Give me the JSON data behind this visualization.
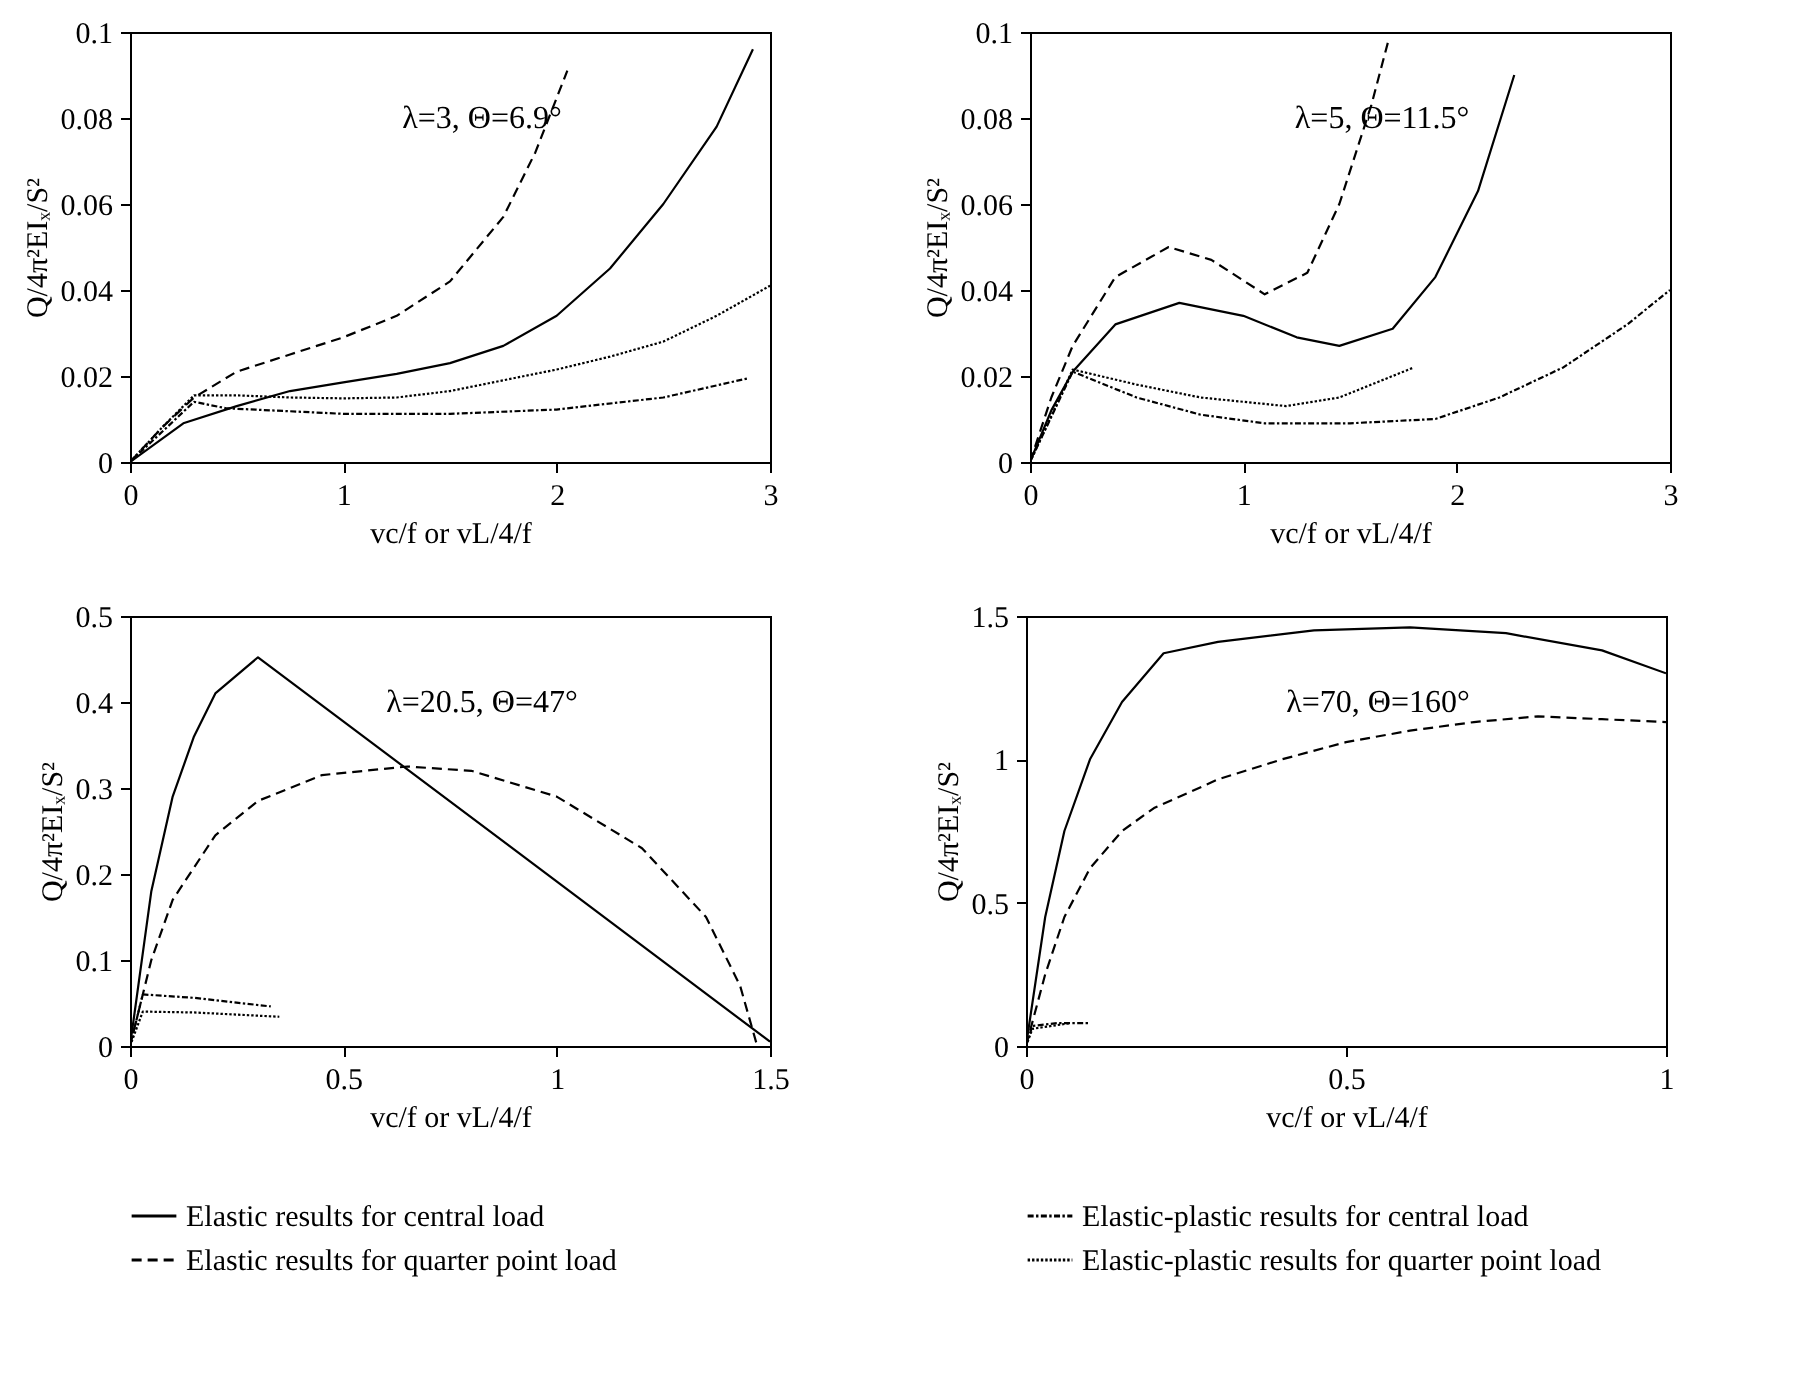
{
  "chart_data": [
    {
      "type": "line",
      "xlabel": "vc/f or vL/4/f",
      "ylabel": "Q/4π²EIₓ/S²",
      "annotations": [
        "λ=3, Θ=6.9°"
      ],
      "xlim": [
        0,
        3
      ],
      "xticks": [
        0,
        1,
        2,
        3
      ],
      "ylim": [
        0,
        0.1
      ],
      "yticks": [
        0,
        0.02,
        0.04,
        0.06,
        0.08,
        0.1
      ],
      "grid": false,
      "legend": false,
      "series": [
        {
          "color": "#000000",
          "line_style": "solid",
          "x": [
            0,
            0.25,
            0.5,
            0.75,
            1,
            1.25,
            1.5,
            1.75,
            2,
            2.25,
            2.5,
            2.75,
            2.92
          ],
          "values": [
            0,
            0.009,
            0.013,
            0.0165,
            0.0185,
            0.0205,
            0.023,
            0.027,
            0.034,
            0.045,
            0.06,
            0.078,
            0.096
          ]
        },
        {
          "color": "#000000",
          "line_style": "dashed",
          "x": [
            0,
            0.15,
            0.3,
            0.5,
            0.75,
            1,
            1.25,
            1.5,
            1.75,
            1.9,
            2.05
          ],
          "values": [
            0,
            0.008,
            0.015,
            0.021,
            0.025,
            0.029,
            0.034,
            0.042,
            0.057,
            0.072,
            0.091
          ]
        },
        {
          "color": "#000000",
          "line_style": "dashdot",
          "x": [
            0,
            0.3,
            0.45,
            0.75,
            1,
            1.5,
            2,
            2.5,
            2.9
          ],
          "values": [
            0,
            0.014,
            0.0125,
            0.0118,
            0.0112,
            0.0112,
            0.0122,
            0.015,
            0.0195
          ]
        },
        {
          "color": "#000000",
          "line_style": "dotted",
          "x": [
            0,
            0.15,
            0.3,
            0.5,
            0.75,
            1,
            1.25,
            1.5,
            1.75,
            2,
            2.25,
            2.5,
            2.75,
            3
          ],
          "values": [
            0,
            0.008,
            0.0155,
            0.0155,
            0.015,
            0.0148,
            0.015,
            0.0165,
            0.019,
            0.0215,
            0.0245,
            0.028,
            0.034,
            0.041
          ]
        }
      ]
    },
    {
      "type": "line",
      "xlabel": "vc/f or vL/4/f",
      "ylabel": "Q/4π²EIₓ/S²",
      "annotations": [
        "λ=5, Θ=11.5°"
      ],
      "xlim": [
        0,
        3
      ],
      "xticks": [
        0,
        1,
        2,
        3
      ],
      "ylim": [
        0,
        0.1
      ],
      "yticks": [
        0,
        0.02,
        0.04,
        0.06,
        0.08,
        0.1
      ],
      "grid": false,
      "legend": false,
      "series": [
        {
          "color": "#000000",
          "line_style": "solid",
          "x": [
            0,
            0.1,
            0.2,
            0.4,
            0.7,
            1,
            1.25,
            1.45,
            1.7,
            1.9,
            2.1,
            2.27
          ],
          "values": [
            0,
            0.012,
            0.021,
            0.032,
            0.037,
            0.034,
            0.029,
            0.027,
            0.031,
            0.043,
            0.063,
            0.09
          ]
        },
        {
          "color": "#000000",
          "line_style": "dashed",
          "x": [
            0,
            0.1,
            0.2,
            0.4,
            0.65,
            0.85,
            1.1,
            1.3,
            1.45,
            1.6,
            1.68
          ],
          "values": [
            0,
            0.015,
            0.027,
            0.043,
            0.05,
            0.047,
            0.039,
            0.044,
            0.06,
            0.083,
            0.098
          ]
        },
        {
          "color": "#000000",
          "line_style": "dashdot",
          "x": [
            0,
            0.2,
            0.5,
            0.8,
            1.1,
            1.5,
            1.9,
            2.2,
            2.5,
            2.8,
            3
          ],
          "values": [
            0,
            0.021,
            0.015,
            0.011,
            0.009,
            0.009,
            0.01,
            0.015,
            0.022,
            0.032,
            0.04
          ]
        },
        {
          "color": "#000000",
          "line_style": "dotted",
          "x": [
            0,
            0.2,
            0.5,
            0.8,
            1.2,
            1.45,
            1.8
          ],
          "values": [
            0,
            0.0215,
            0.018,
            0.015,
            0.013,
            0.015,
            0.022
          ]
        }
      ]
    },
    {
      "type": "line",
      "xlabel": "vc/f or vL/4/f",
      "ylabel": "Q/4π²EIₓ/S²",
      "annotations": [
        "λ=20.5, Θ=47°"
      ],
      "xlim": [
        0,
        1.5
      ],
      "xticks": [
        0,
        0.5,
        1,
        1.5
      ],
      "ylim": [
        0,
        0.5
      ],
      "yticks": [
        0,
        0.1,
        0.2,
        0.3,
        0.4,
        0.5
      ],
      "grid": false,
      "legend": "bottom",
      "series": [
        {
          "name": "Elastic results for central load",
          "color": "#000000",
          "line_style": "solid",
          "x": [
            0,
            0.05,
            0.1,
            0.15,
            0.2,
            0.3,
            1.5
          ],
          "values": [
            0,
            0.18,
            0.29,
            0.36,
            0.41,
            0.452,
            0.005
          ]
        },
        {
          "name": "Elastic results for quarter point load",
          "color": "#000000",
          "line_style": "dashed",
          "x": [
            0,
            0.05,
            0.1,
            0.2,
            0.3,
            0.45,
            0.65,
            0.8,
            1,
            1.2,
            1.35,
            1.43,
            1.47
          ],
          "values": [
            0,
            0.1,
            0.17,
            0.245,
            0.285,
            0.315,
            0.325,
            0.32,
            0.29,
            0.23,
            0.15,
            0.07,
            0
          ]
        },
        {
          "color": "#000000",
          "line_style": "dashdot",
          "x": [
            0,
            0.03,
            0.15,
            0.33
          ],
          "values": [
            0,
            0.06,
            0.056,
            0.046
          ]
        },
        {
          "color": "#000000",
          "line_style": "dotted",
          "x": [
            0,
            0.03,
            0.15,
            0.35
          ],
          "values": [
            0,
            0.04,
            0.039,
            0.034
          ]
        }
      ]
    },
    {
      "type": "line",
      "xlabel": "vc/f or vL/4/f",
      "ylabel": "Q/4π²EIₓ/S²",
      "annotations": [
        "λ=70, Θ=160°"
      ],
      "xlim": [
        0,
        1
      ],
      "xticks": [
        0,
        0.5,
        1
      ],
      "ylim": [
        0,
        1.5
      ],
      "yticks": [
        0,
        0.5,
        1,
        1.5
      ],
      "grid": false,
      "legend": "bottom",
      "series": [
        {
          "color": "#000000",
          "line_style": "solid",
          "x": [
            0,
            0.03,
            0.06,
            0.1,
            0.15,
            0.215,
            0.3,
            0.45,
            0.6,
            0.75,
            0.9,
            1
          ],
          "values": [
            0,
            0.45,
            0.75,
            1.0,
            1.2,
            1.37,
            1.41,
            1.45,
            1.46,
            1.44,
            1.38,
            1.3
          ]
        },
        {
          "color": "#000000",
          "line_style": "dashed",
          "x": [
            0,
            0.03,
            0.06,
            0.1,
            0.15,
            0.2,
            0.3,
            0.4,
            0.5,
            0.6,
            0.7,
            0.8,
            0.9,
            1
          ],
          "values": [
            0,
            0.25,
            0.45,
            0.62,
            0.75,
            0.83,
            0.93,
            1.0,
            1.06,
            1.1,
            1.13,
            1.15,
            1.14,
            1.13
          ]
        },
        {
          "name": "Elastic-plastic results for central load",
          "color": "#000000",
          "line_style": "dashdot",
          "x": [
            0,
            0.01,
            0.05,
            0.1
          ],
          "values": [
            0,
            0.07,
            0.08,
            0.08
          ]
        },
        {
          "name": "Elastic-plastic results for quarter point load",
          "color": "#000000",
          "line_style": "dotted",
          "x": [
            0,
            0.01,
            0.04,
            0.07
          ],
          "values": [
            0,
            0.06,
            0.07,
            0.08
          ]
        }
      ]
    }
  ]
}
